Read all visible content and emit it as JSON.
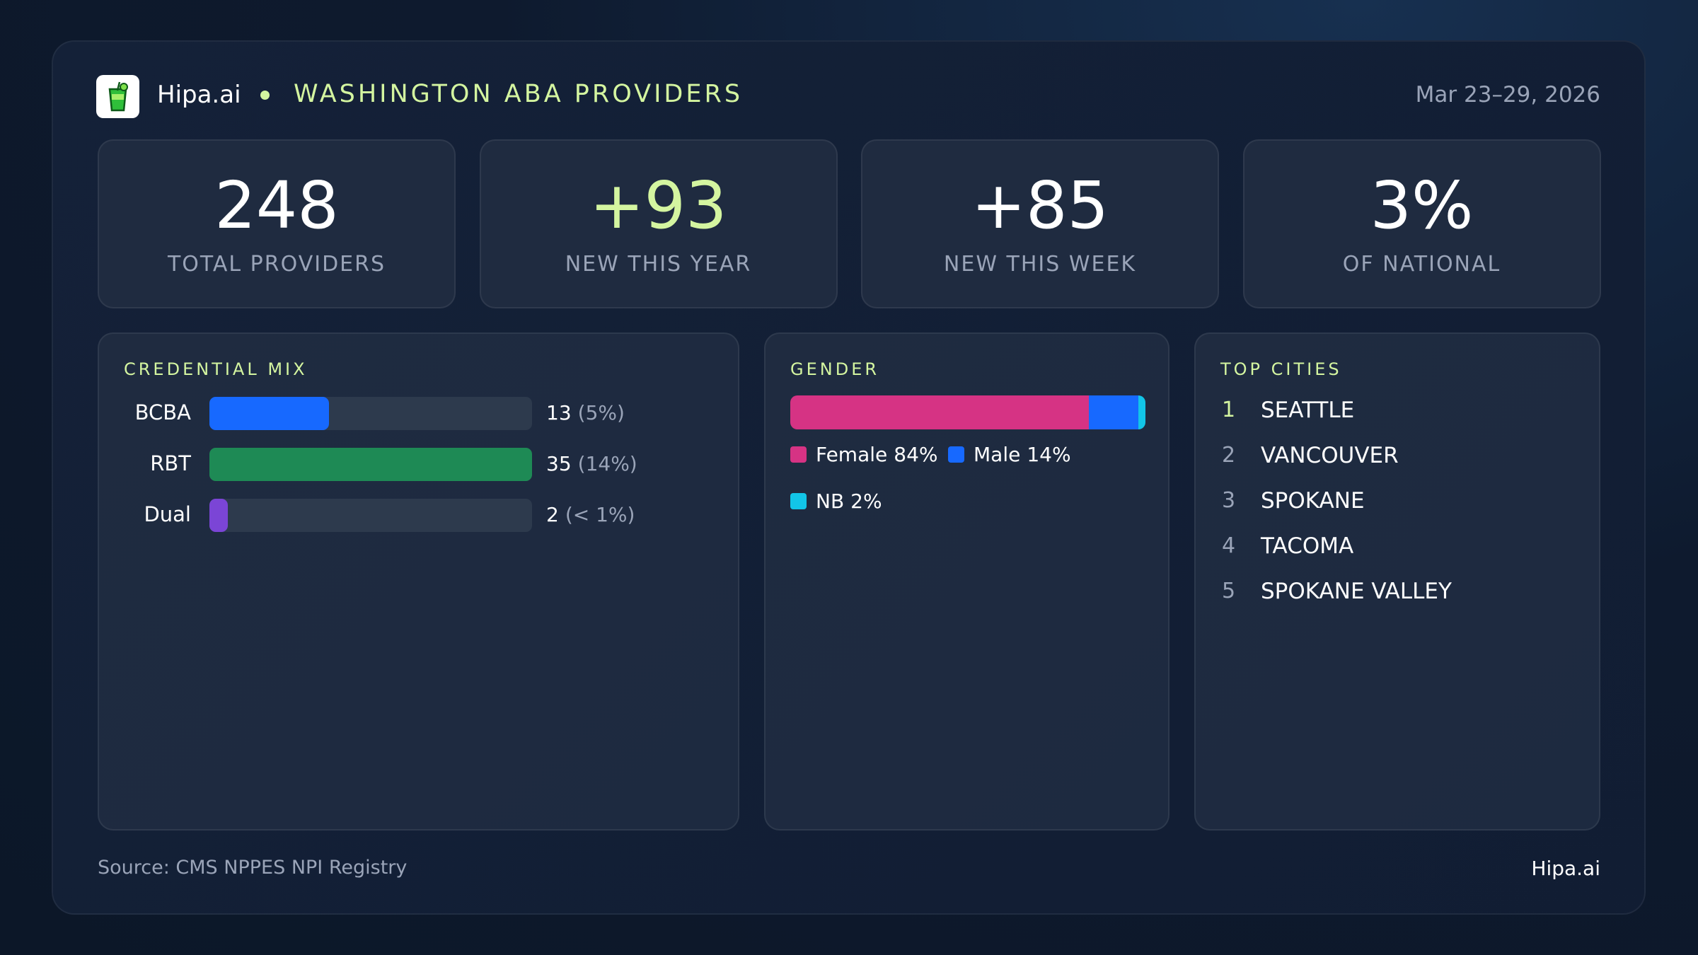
{
  "header": {
    "brand": "Hipa.ai",
    "title": "WASHINGTON ABA PROVIDERS",
    "date": "Mar 23–29, 2026"
  },
  "kpis": [
    {
      "value": "248",
      "label": "TOTAL PROVIDERS",
      "color": "#ffffff"
    },
    {
      "value": "+93",
      "label": "NEW THIS YEAR",
      "color": "#d4f5a0"
    },
    {
      "value": "+85",
      "label": "NEW THIS WEEK",
      "color": "#ffffff"
    },
    {
      "value": "3%",
      "label": "OF NATIONAL",
      "color": "#ffffff"
    }
  ],
  "credential_mix": {
    "type": "bar",
    "title": "CREDENTIAL MIX",
    "categories": [
      "BCBA",
      "RBT",
      "Dual"
    ],
    "values": [
      13,
      35,
      2
    ],
    "share_labels": [
      "(5%)",
      "(14%)",
      "(< 1%)"
    ],
    "colors": [
      "#1769ff",
      "#1e8a55",
      "#7b45d6"
    ]
  },
  "gender": {
    "type": "stacked-bar",
    "title": "GENDER",
    "series": [
      {
        "name": "Female",
        "color": "#d63384",
        "values": [
          84
        ],
        "value_labels": [
          "84%"
        ]
      },
      {
        "name": "Male",
        "color": "#1769ff",
        "values": [
          14
        ],
        "value_labels": [
          "14%"
        ]
      },
      {
        "name": "NB",
        "color": "#12c5e8",
        "values": [
          2
        ],
        "value_labels": [
          "2%"
        ]
      }
    ]
  },
  "top_cities": {
    "title": "TOP CITIES",
    "rows": [
      {
        "rank": 1,
        "name": "SEATTLE"
      },
      {
        "rank": 2,
        "name": "VANCOUVER"
      },
      {
        "rank": 3,
        "name": "SPOKANE"
      },
      {
        "rank": 4,
        "name": "TACOMA"
      },
      {
        "rank": 5,
        "name": "SPOKANE VALLEY"
      }
    ]
  },
  "footer": {
    "source": "Source: CMS NPPES NPI Registry",
    "brand": "Hipa.ai"
  }
}
